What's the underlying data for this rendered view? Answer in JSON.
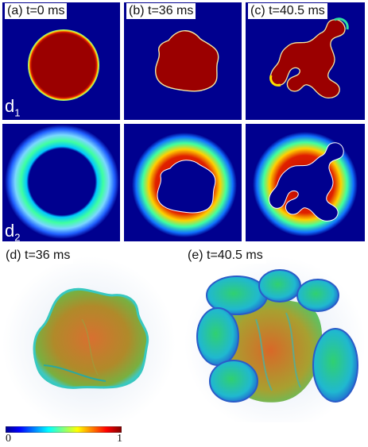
{
  "panels": {
    "a": {
      "label": "(a) t=0 ms"
    },
    "b": {
      "label": "(b) t=36 ms"
    },
    "c": {
      "label": "(c) t=40.5 ms"
    },
    "d": {
      "label": "(d) t=36 ms"
    },
    "e": {
      "label": "(e) t=40.5 ms"
    }
  },
  "row_labels": {
    "d1": {
      "main": "d",
      "sub": "1"
    },
    "d2": {
      "main": "d",
      "sub": "2"
    }
  },
  "colorbar": {
    "min_label": "0",
    "max_label": "1"
  }
}
